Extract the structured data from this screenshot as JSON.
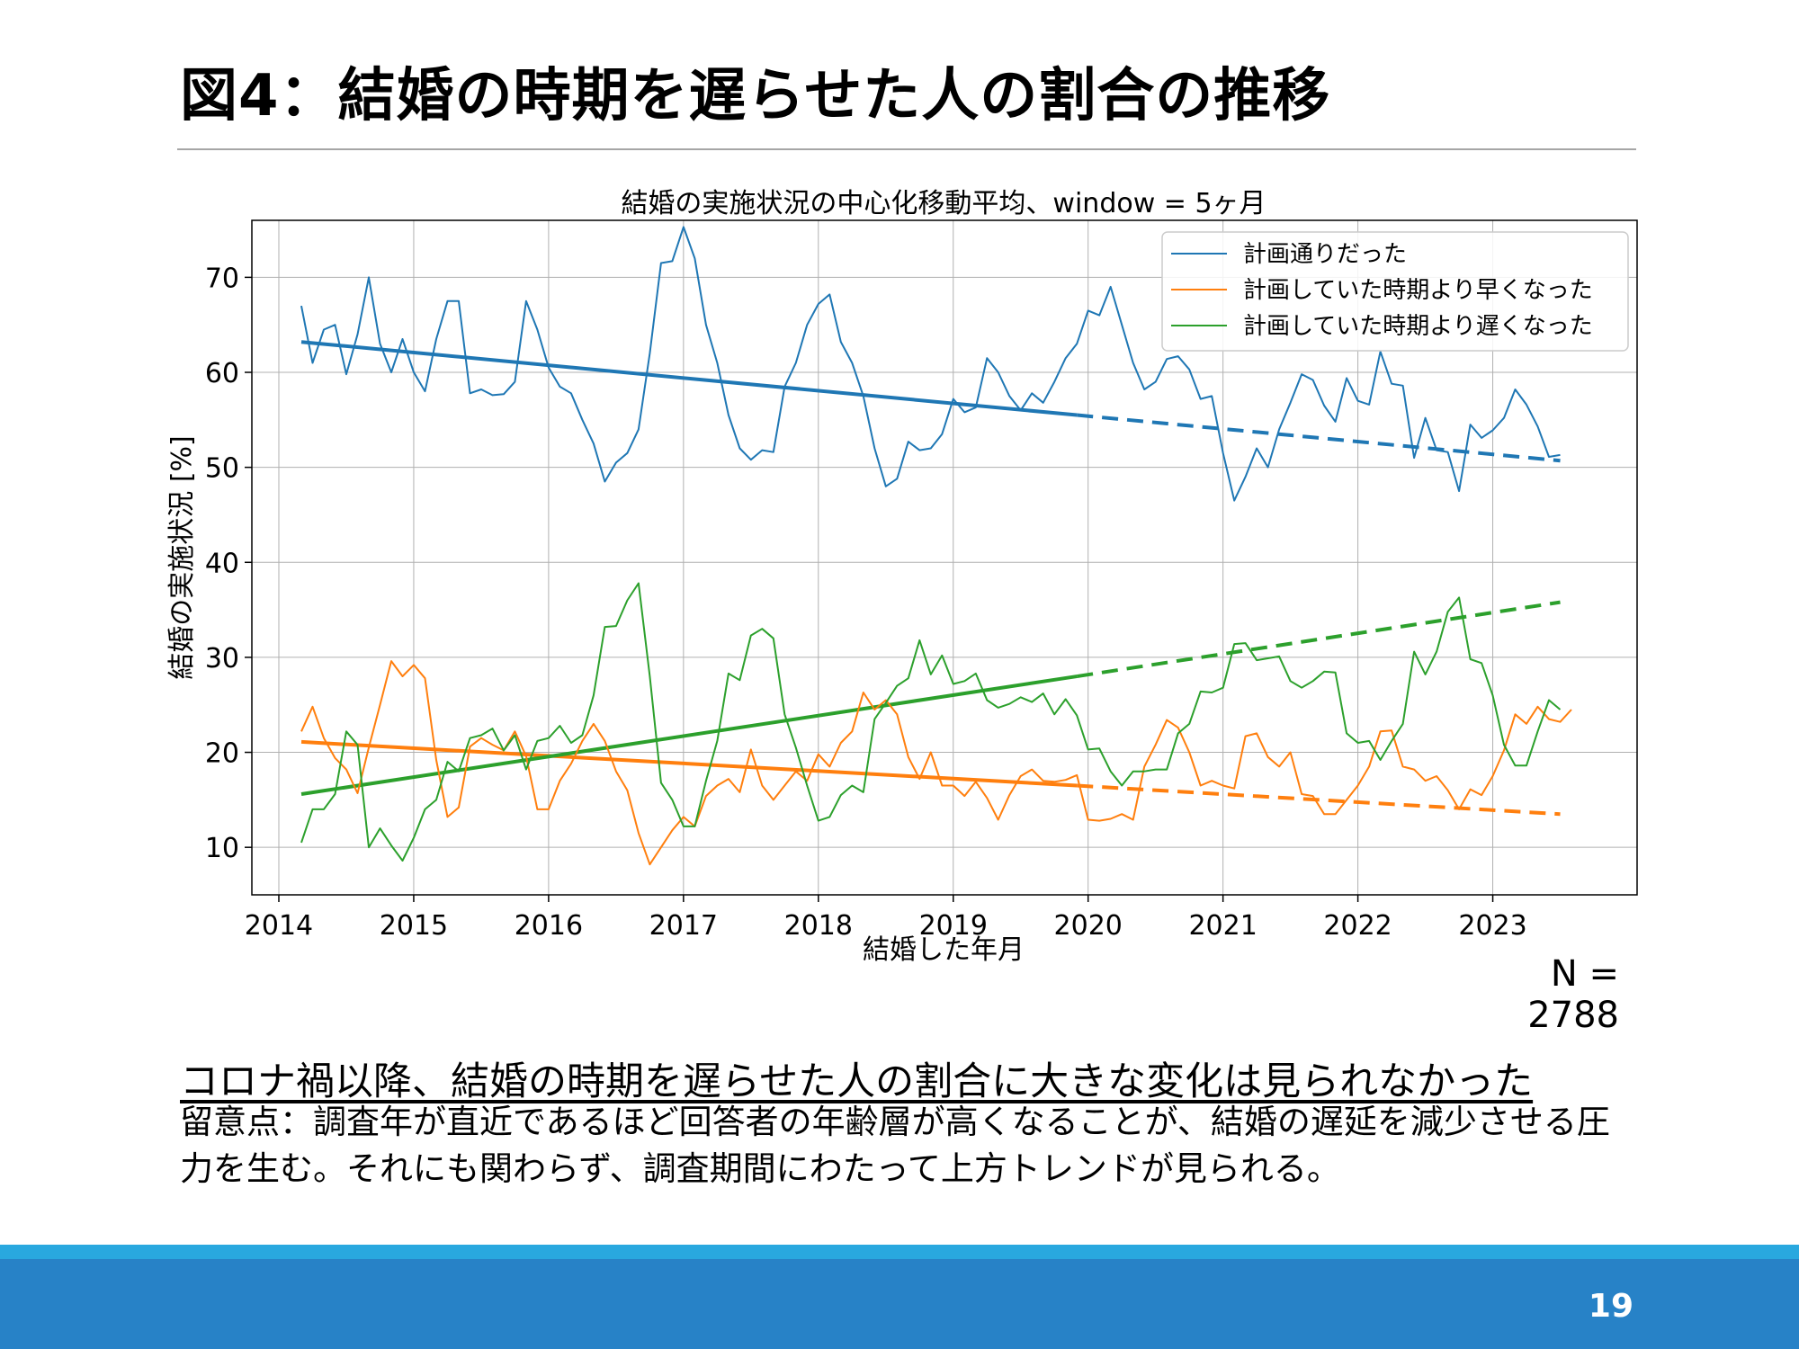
{
  "slide": {
    "title": "図4：結婚の時期を遅らせた人の割合の推移",
    "sample_size": "N = 2788",
    "conclusion": "コロナ禍以降、結婚の時期を遅らせた人の割合に大きな変化は見られなかった",
    "note": "留意点：調査年が直近であるほど回答者の年齢層が高くなることが、結婚の遅延を減少させる圧力を生む。それにも関わらず、調査期間にわたって上方トレンドが見られる。",
    "page_number": "19"
  },
  "colors": {
    "blue": "#1f77b4",
    "orange": "#ff7f0e",
    "green": "#2ca02c",
    "footer": "#2782c7",
    "footer_stripe": "#29a8df"
  },
  "chart_data": {
    "type": "line",
    "title": "結婚の実施状況の中心化移動平均、window = 5ヶ月",
    "xlabel": "結婚した年月",
    "ylabel": "結婚の実施状況 [%]",
    "xlim": [
      2013.8,
      2024.07
    ],
    "ylim": [
      5,
      76
    ],
    "xticks": [
      2014,
      2015,
      2016,
      2017,
      2018,
      2019,
      2020,
      2021,
      2022,
      2023
    ],
    "yticks": [
      10,
      20,
      30,
      40,
      50,
      60,
      70
    ],
    "grid": true,
    "legend_position": "top-right",
    "x_start": 2014.167,
    "x_step": 0.08333,
    "series": [
      {
        "name": "計画通りだった",
        "color": "#1f77b4",
        "values": [
          67,
          61,
          64.5,
          65,
          59.8,
          64,
          70,
          63,
          60,
          63.5,
          60,
          58,
          63.5,
          67.5,
          67.5,
          57.8,
          58.2,
          57.6,
          57.7,
          59,
          67.5,
          64.5,
          60.5,
          58.5,
          57.8,
          55,
          52.5,
          48.5,
          50.5,
          51.5,
          54,
          62,
          71.5,
          71.7,
          75.3,
          72,
          65,
          61,
          55.5,
          52,
          50.8,
          51.8,
          51.6,
          58.5,
          61,
          65,
          67.2,
          68.2,
          63.2,
          61,
          57.5,
          52,
          48,
          48.8,
          52.7,
          51.8,
          52,
          53.5,
          57.2,
          55.8,
          56.3,
          61.5,
          60,
          57.5,
          56,
          57.8,
          56.8,
          59,
          61.5,
          63,
          66.5,
          66,
          69,
          65,
          61,
          58.2,
          59,
          61.4,
          61.7,
          60.3,
          57.2,
          57.5,
          51.5,
          46.5,
          49,
          52,
          50,
          54,
          56.8,
          59.8,
          59.2,
          56.5,
          54.8,
          59.4,
          57,
          56.6,
          62.2,
          58.8,
          58.6,
          51,
          55.2,
          51.8,
          51.6,
          47.5,
          54.5,
          53.1,
          53.9,
          55.2,
          58.2,
          56.6,
          54.3,
          51.1,
          51.3
        ]
      },
      {
        "name": "計画していた時期より早くなった",
        "color": "#ff7f0e",
        "values": [
          22.2,
          24.8,
          21.5,
          19.4,
          18.2,
          15.7,
          20.5,
          25,
          29.6,
          28,
          29.2,
          27.8,
          19.2,
          13.2,
          14.2,
          20.6,
          21.5,
          20.8,
          20.2,
          22.2,
          19.6,
          14,
          14,
          17,
          18.8,
          21.2,
          23,
          21.2,
          18,
          16,
          11.5,
          8.2,
          10,
          11.8,
          13.2,
          12.2,
          15.4,
          16.5,
          17.2,
          15.8,
          20.3,
          16.5,
          15,
          16.5,
          18,
          17,
          19.8,
          18.5,
          21,
          22.2,
          26.3,
          24.5,
          25.5,
          24,
          19.5,
          17.2,
          20,
          16.5,
          16.5,
          15.4,
          16.9,
          15.2,
          12.9,
          15.5,
          17.5,
          18.2,
          17,
          16.9,
          17.1,
          17.6,
          12.9,
          12.8,
          13,
          13.5,
          12.9,
          18.5,
          20.8,
          23.4,
          22.6,
          20,
          16.5,
          17,
          16.5,
          16.2,
          21.7,
          22,
          19.5,
          18.5,
          20,
          15.6,
          15.4,
          13.5,
          13.5,
          15,
          16.5,
          18.5,
          22.2,
          22.3,
          18.5,
          18.2,
          17,
          17.5,
          16,
          14,
          16.1,
          15.5,
          17.5,
          20.2,
          24,
          23,
          24.8,
          23.5,
          23.2,
          24.5
        ]
      },
      {
        "name": "計画していた時期より遅くなった",
        "color": "#2ca02c",
        "values": [
          10.5,
          14,
          14,
          15.6,
          22.2,
          20.8,
          10,
          12,
          10.2,
          8.6,
          11,
          14,
          15,
          19,
          18,
          21.5,
          21.8,
          22.5,
          20.2,
          21.8,
          18.2,
          21.2,
          21.5,
          22.8,
          21,
          21.8,
          26,
          33.2,
          33.3,
          36,
          37.8,
          28,
          16.8,
          15,
          12.2,
          12.2,
          17,
          21.2,
          28.3,
          27.6,
          32.3,
          33,
          32,
          24,
          20.5,
          16.5,
          12.8,
          13.2,
          15.5,
          16.5,
          15.8,
          23.5,
          25.2,
          27,
          27.8,
          31.8,
          28.2,
          30.2,
          27.2,
          27.5,
          28.3,
          25.5,
          24.7,
          25.1,
          25.8,
          25.3,
          26.2,
          24,
          25.6,
          23.9,
          20.3,
          20.4,
          18,
          16.5,
          18,
          18,
          18.2,
          18.2,
          22,
          23,
          26.4,
          26.3,
          26.8,
          31.4,
          31.5,
          29.7,
          29.9,
          30.1,
          27.5,
          26.8,
          27.5,
          28.5,
          28.4,
          22,
          21,
          21.2,
          19.2,
          21.2,
          23,
          30.6,
          28.2,
          30.6,
          34.8,
          36.3,
          29.8,
          29.4,
          26,
          20.8,
          18.6,
          18.6,
          22.2,
          25.5,
          24.5
        ]
      }
    ],
    "trends": [
      {
        "color": "#1f77b4",
        "solid": [
          [
            2014.167,
            63.2
          ],
          [
            2019.917,
            55.5
          ]
        ],
        "dashed": [
          [
            2019.917,
            55.5
          ],
          [
            2023.5,
            50.7
          ]
        ]
      },
      {
        "color": "#ff7f0e",
        "solid": [
          [
            2014.167,
            21.1
          ],
          [
            2019.917,
            16.5
          ]
        ],
        "dashed": [
          [
            2019.917,
            16.5
          ],
          [
            2023.5,
            13.5
          ]
        ]
      },
      {
        "color": "#2ca02c",
        "solid": [
          [
            2014.167,
            15.6
          ],
          [
            2019.917,
            28
          ]
        ],
        "dashed": [
          [
            2019.917,
            28
          ],
          [
            2023.5,
            35.8
          ]
        ]
      }
    ]
  }
}
